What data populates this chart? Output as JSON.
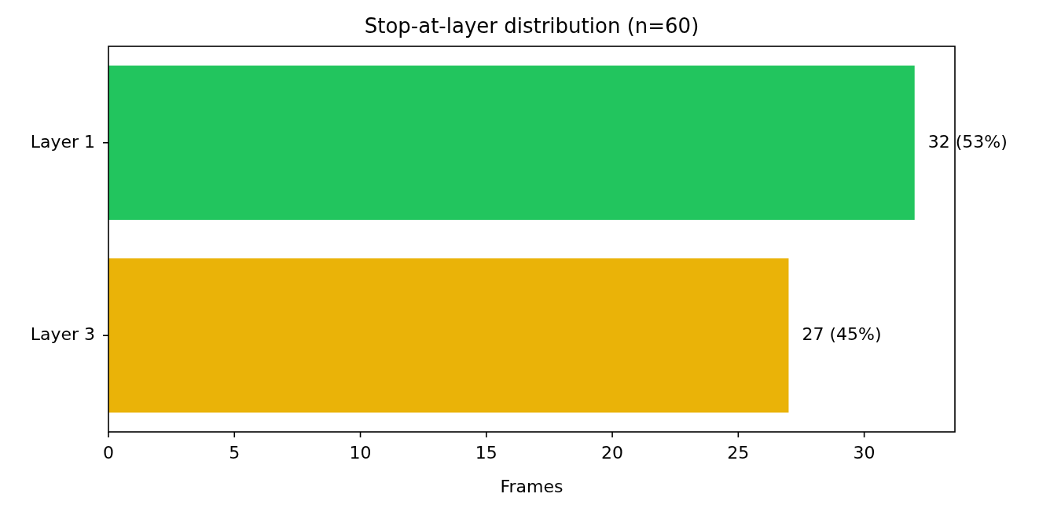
{
  "chart_data": {
    "type": "bar",
    "orientation": "horizontal",
    "title": "Stop-at-layer distribution (n=60)",
    "xlabel": "Frames",
    "categories": [
      "Layer 1",
      "Layer 3"
    ],
    "values": [
      32,
      27
    ],
    "colors": [
      "#22c55e",
      "#eab308"
    ],
    "value_labels": [
      "32 (53%)",
      "27 (45%)"
    ],
    "xlim": [
      0,
      33.6
    ],
    "xticks": [
      0,
      5,
      10,
      15,
      20,
      25,
      30
    ],
    "grid": false
  }
}
